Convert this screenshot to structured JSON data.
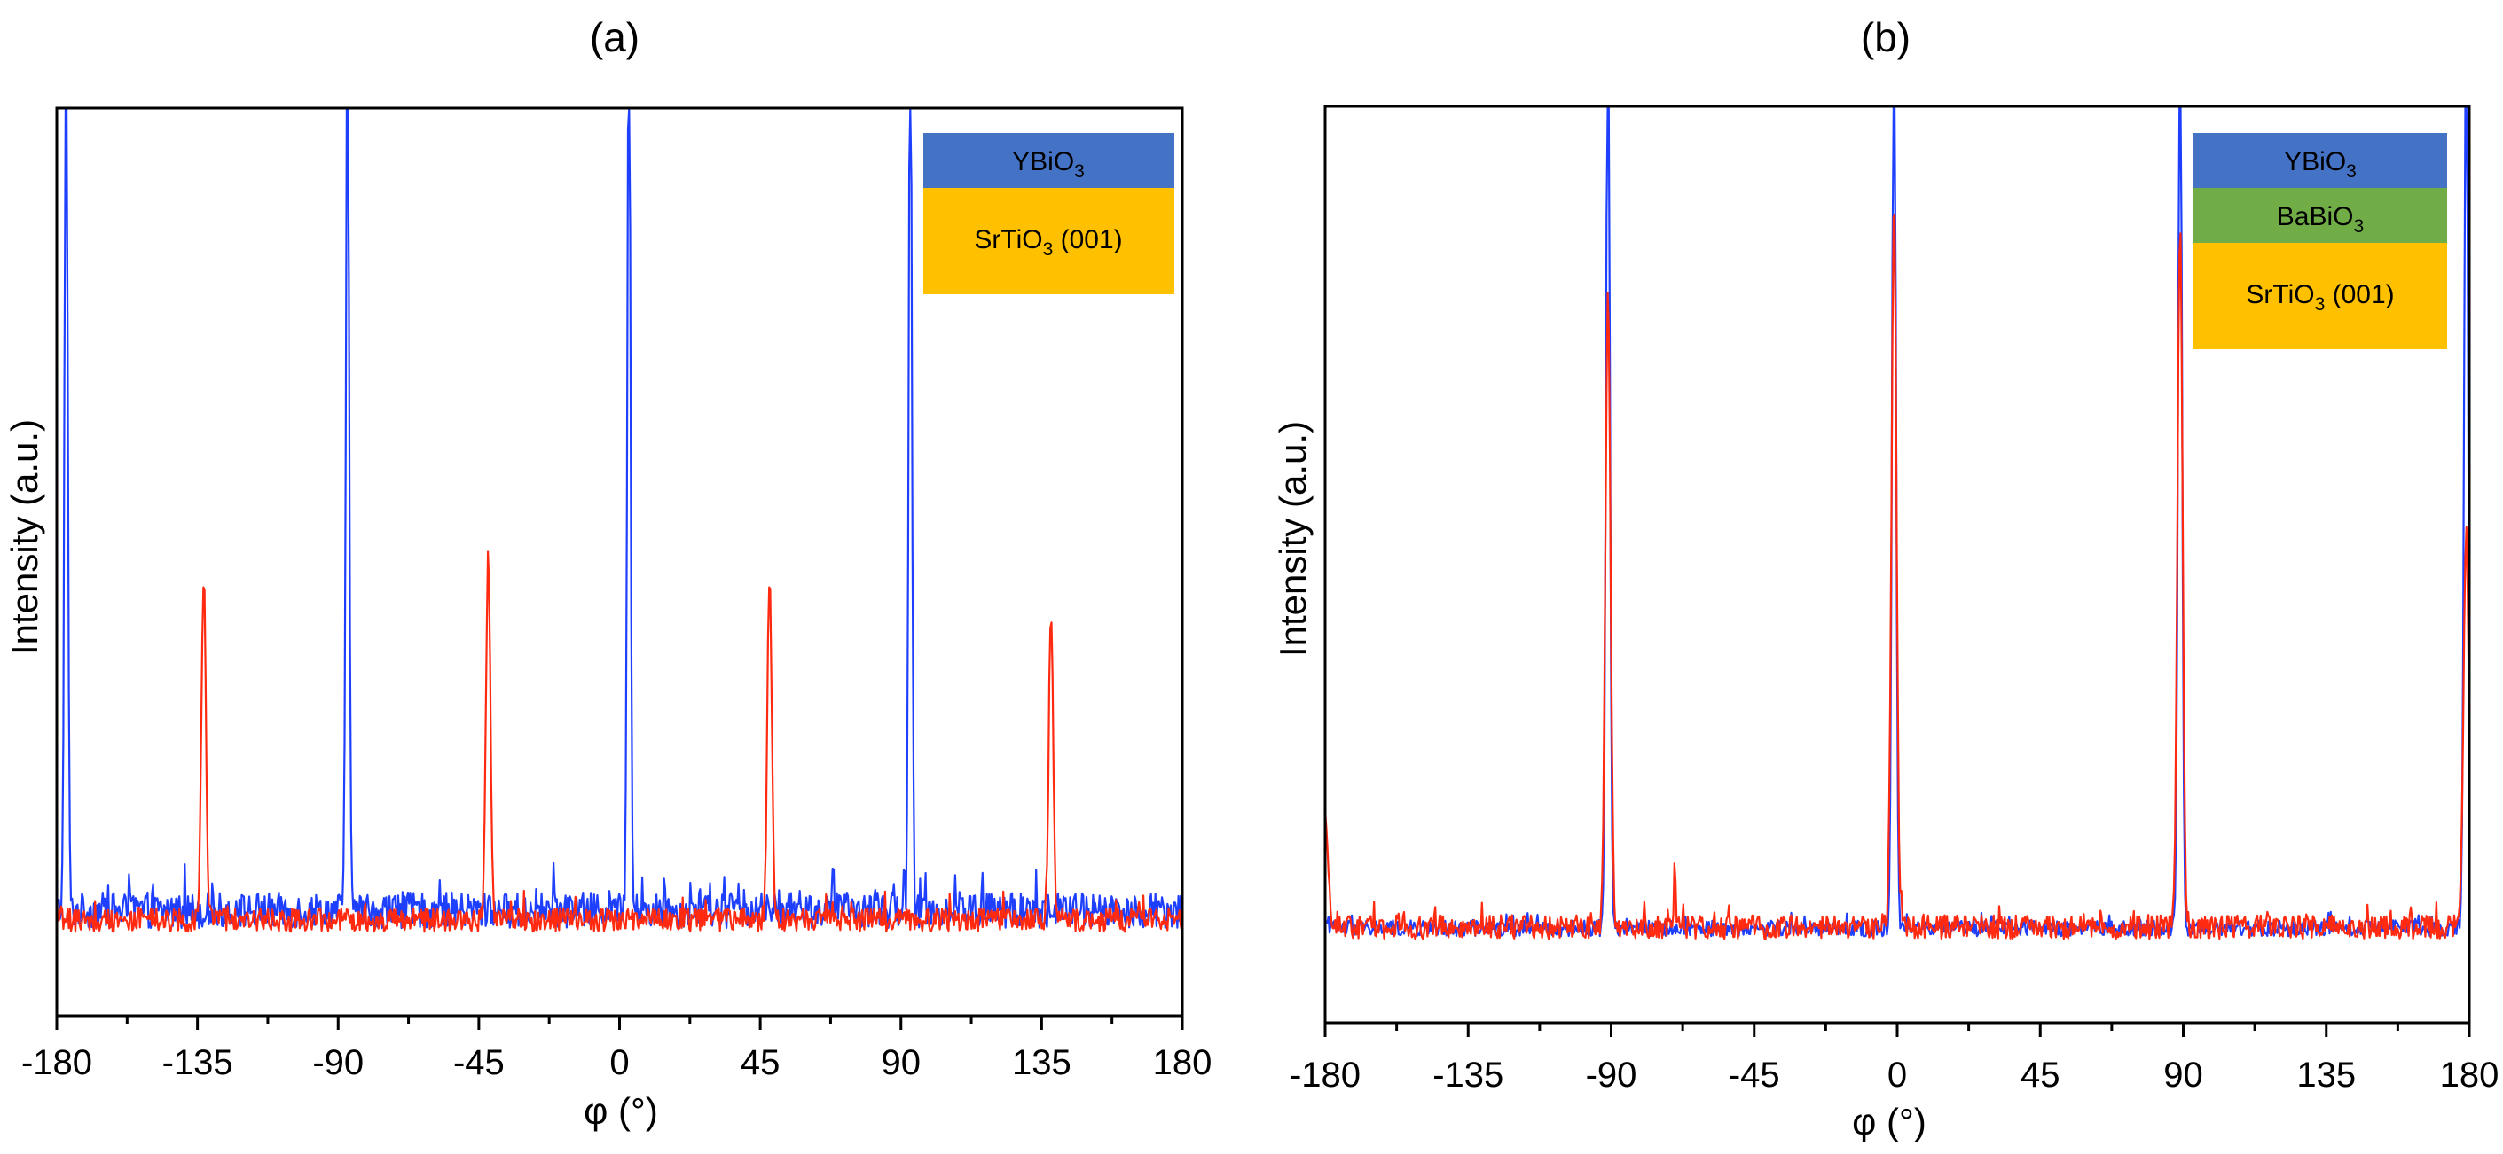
{
  "colors": {
    "ybio3_trace": "#1f3fff",
    "substrate_trace": "#ff2a10",
    "layer_ybio3": "#4472c4",
    "layer_babio3": "#70ad47",
    "layer_srtio3": "#ffc000"
  },
  "chart_data": [
    {
      "type": "line",
      "title": "(a)",
      "xlabel": "φ (°)",
      "ylabel": "Intensity (a.u.)",
      "xlim": [
        -180,
        180
      ],
      "ylim": [
        -0.12,
        1.0
      ],
      "xticks": [
        "-180",
        "-135",
        "-90",
        "-45",
        "0",
        "45",
        "90",
        "135",
        "180"
      ],
      "grid": false,
      "series": [
        {
          "name": "YBiO3 (blue)",
          "color": "#1f3fff",
          "baseline": 0.01,
          "noise": 0.045,
          "peaks": [
            {
              "x": -177,
              "height": 1.2,
              "width": 0.5
            },
            {
              "x": -87,
              "height": 1.2,
              "width": 0.5
            },
            {
              "x": 3,
              "height": 1.2,
              "width": 0.5
            },
            {
              "x": 93,
              "height": 1.2,
              "width": 0.5
            }
          ]
        },
        {
          "name": "SrTiO3 substrate (red)",
          "color": "#ff2a10",
          "baseline": 0.0,
          "noise": 0.03,
          "peaks": [
            {
              "x": -133,
              "height": 0.44,
              "width": 0.7
            },
            {
              "x": -42,
              "height": 0.46,
              "width": 0.7
            },
            {
              "x": 48,
              "height": 0.44,
              "width": 0.7
            },
            {
              "x": 138,
              "height": 0.39,
              "width": 0.7
            }
          ]
        }
      ],
      "stack": [
        {
          "label_main": "YBiO",
          "label_sub": "3",
          "label_tail": "",
          "color": "#4472c4"
        },
        {
          "label_main": "SrTiO",
          "label_sub": "3",
          "label_tail": " (001)",
          "color": "#ffc000"
        }
      ]
    },
    {
      "type": "line",
      "title": "(b)",
      "xlabel": "φ (°)",
      "ylabel": "Intensity (a.u.)",
      "xlim": [
        -180,
        180
      ],
      "ylim": [
        -0.12,
        1.0
      ],
      "xticks": [
        "-180",
        "-135",
        "-90",
        "-45",
        "0",
        "45",
        "90",
        "135",
        "180"
      ],
      "grid": false,
      "series": [
        {
          "name": "YBiO3 (blue)",
          "color": "#1f3fff",
          "baseline": 0.0,
          "noise": 0.02,
          "peaks": [
            {
              "x": -91,
              "height": 1.2,
              "width": 0.6
            },
            {
              "x": -1,
              "height": 1.2,
              "width": 0.6
            },
            {
              "x": 89,
              "height": 1.2,
              "width": 0.6
            },
            {
              "x": 179,
              "height": 1.2,
              "width": 0.6
            }
          ]
        },
        {
          "name": "SrTiO3 substrate (red)",
          "color": "#ff2a10",
          "baseline": 0.0,
          "noise": 0.03,
          "peaks": [
            {
              "x": -180,
              "height": 0.14,
              "width": 0.9
            },
            {
              "x": -91,
              "height": 0.8,
              "width": 0.8
            },
            {
              "x": -70,
              "height": 0.08,
              "width": 0.3
            },
            {
              "x": -1,
              "height": 0.9,
              "width": 0.8
            },
            {
              "x": 89,
              "height": 0.89,
              "width": 0.8
            },
            {
              "x": 179,
              "height": 0.5,
              "width": 0.8
            }
          ]
        }
      ],
      "stack": [
        {
          "label_main": "YBiO",
          "label_sub": "3",
          "label_tail": "",
          "color": "#4472c4"
        },
        {
          "label_main": "BaBiO",
          "label_sub": "3",
          "label_tail": "",
          "color": "#70ad47"
        },
        {
          "label_main": "SrTiO",
          "label_sub": "3",
          "label_tail": " (001)",
          "color": "#ffc000"
        }
      ]
    }
  ]
}
